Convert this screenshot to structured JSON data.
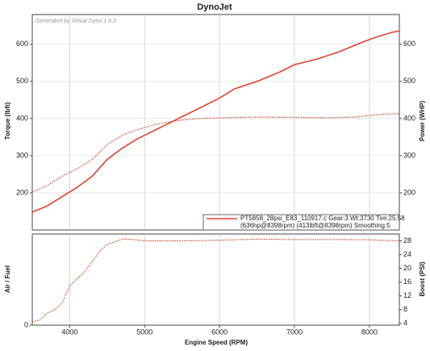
{
  "chart_data": [
    {
      "type": "line",
      "title": "DynoJet",
      "watermark": "Generated by Virtual Dyno 1.6.2",
      "y_label": "Torque (lbft)",
      "y2_label": "Power (WHP)",
      "xlim": [
        3500,
        8400
      ],
      "ylim": [
        100,
        680
      ],
      "yticks": [
        200,
        300,
        400,
        500,
        600
      ],
      "y2lim": [
        100,
        680
      ],
      "y2ticks": [
        200,
        300,
        400,
        500,
        600
      ],
      "grid": true,
      "legend_text": [
        "PT5858_28psi_E83_110917.c Gear:3 Wt:3730 Tire:25.58",
        "(636hp@8398rpm) (413lbft@8398rpm) Smoothing:5"
      ],
      "series": [
        {
          "color": "#e8432e",
          "line_style": "solid",
          "axis": "y2",
          "x": [
            3500,
            3700,
            3900,
            4100,
            4300,
            4500,
            4700,
            4900,
            5100,
            5300,
            5500,
            5700,
            6000,
            6200,
            6500,
            6800,
            7000,
            7300,
            7600,
            7900,
            8100,
            8300,
            8398
          ],
          "values": [
            148,
            165,
            190,
            215,
            245,
            290,
            320,
            345,
            365,
            385,
            405,
            425,
            455,
            480,
            500,
            525,
            545,
            560,
            580,
            605,
            620,
            632,
            636
          ]
        },
        {
          "color": "#e8432e",
          "line_style": "dotted",
          "x": [
            3500,
            3700,
            3900,
            4100,
            4300,
            4500,
            4700,
            4900,
            5100,
            5300,
            5500,
            5700,
            6000,
            6500,
            7000,
            7500,
            7800,
            8000,
            8200,
            8398
          ],
          "values": [
            202,
            220,
            245,
            265,
            290,
            330,
            355,
            370,
            382,
            390,
            396,
            400,
            402,
            404,
            403,
            402,
            404,
            408,
            412,
            413
          ]
        }
      ]
    },
    {
      "type": "line",
      "x_label": "Engine Speed (RPM)",
      "y_label": "Air / Fuel",
      "y2_label": "Boost (PSI)",
      "xlim": [
        3500,
        8400
      ],
      "xticks": [
        4000,
        5000,
        6000,
        7000,
        8000
      ],
      "ylim": [
        0,
        20
      ],
      "yticks": [
        0
      ],
      "y2lim": [
        3.5,
        30
      ],
      "y2ticks": [
        4,
        8,
        12,
        16,
        20,
        24,
        28
      ],
      "grid": true,
      "series": [
        {
          "color": "#e8432e",
          "line_style": "dotted",
          "axis": "y2",
          "x": [
            3500,
            3600,
            3700,
            3800,
            3900,
            4000,
            4100,
            4200,
            4300,
            4400,
            4500,
            4600,
            4700,
            4800,
            5000,
            5500,
            6000,
            6500,
            7000,
            7500,
            8000,
            8398
          ],
          "values": [
            4.5,
            5,
            7,
            8,
            10,
            15,
            17,
            19,
            22,
            25,
            27,
            27.7,
            28.5,
            28.5,
            28,
            28,
            28.2,
            28.5,
            28.4,
            28.4,
            28.3,
            28
          ]
        }
      ]
    }
  ]
}
